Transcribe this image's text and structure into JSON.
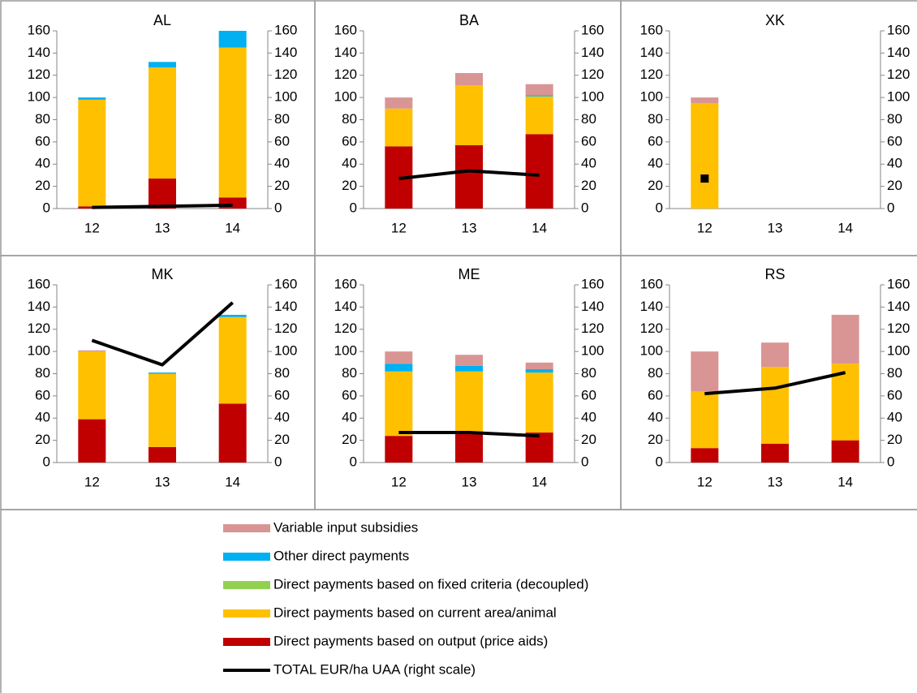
{
  "chart_data": [
    {
      "type": "bar",
      "title": "AL",
      "categories": [
        "12",
        "13",
        "14"
      ],
      "ylim": [
        0,
        160
      ],
      "yticks": [
        0,
        20,
        40,
        60,
        80,
        100,
        120,
        140,
        160
      ],
      "y2lim": [
        0,
        160
      ],
      "y2ticks": [
        0,
        20,
        40,
        60,
        80,
        100,
        120,
        140,
        160
      ],
      "series": [
        {
          "name": "Variable input subsidies",
          "color": "#d99594",
          "values": [
            0,
            0,
            0
          ]
        },
        {
          "name": "Other direct payments",
          "color": "#00b0f0",
          "values": [
            2,
            5,
            15
          ]
        },
        {
          "name": "Direct payments based on fixed criteria (decoupled)",
          "color": "#92d050",
          "values": [
            0,
            0,
            0
          ]
        },
        {
          "name": "Direct payments based on current area/animal",
          "color": "#ffc000",
          "values": [
            96,
            100,
            135
          ]
        },
        {
          "name": "Direct payments based on output (price aids)",
          "color": "#c00000",
          "values": [
            2,
            27,
            10
          ]
        },
        {
          "name": "TOTAL EUR/ha UAA (right scale)",
          "color": "#000000",
          "type": "line",
          "axis": "y2",
          "values": [
            1,
            2,
            3
          ]
        }
      ]
    },
    {
      "type": "bar",
      "title": "BA",
      "categories": [
        "12",
        "13",
        "14"
      ],
      "ylim": [
        0,
        160
      ],
      "yticks": [
        0,
        20,
        40,
        60,
        80,
        100,
        120,
        140,
        160
      ],
      "y2lim": [
        0,
        160
      ],
      "y2ticks": [
        0,
        20,
        40,
        60,
        80,
        100,
        120,
        140,
        160
      ],
      "series": [
        {
          "name": "Variable input subsidies",
          "color": "#d99594",
          "values": [
            10,
            11,
            10
          ]
        },
        {
          "name": "Other direct payments",
          "color": "#00b0f0",
          "values": [
            0,
            0,
            1
          ]
        },
        {
          "name": "Direct payments based on fixed criteria (decoupled)",
          "color": "#92d050",
          "values": [
            0,
            0,
            0
          ]
        },
        {
          "name": "Direct payments based on current area/animal",
          "color": "#ffc000",
          "values": [
            34,
            54,
            34
          ]
        },
        {
          "name": "Direct payments based on output (price aids)",
          "color": "#c00000",
          "values": [
            56,
            57,
            67
          ]
        },
        {
          "name": "TOTAL EUR/ha UAA (right scale)",
          "color": "#000000",
          "type": "line",
          "axis": "y2",
          "values": [
            27,
            34,
            30
          ]
        }
      ]
    },
    {
      "type": "bar",
      "title": "XK",
      "categories": [
        "12",
        "13",
        "14"
      ],
      "ylim": [
        0,
        160
      ],
      "yticks": [
        0,
        20,
        40,
        60,
        80,
        100,
        120,
        140,
        160
      ],
      "y2lim": [
        0,
        160
      ],
      "y2ticks": [
        0,
        20,
        40,
        60,
        80,
        100,
        120,
        140,
        160
      ],
      "series": [
        {
          "name": "Variable input subsidies",
          "color": "#d99594",
          "values": [
            5,
            null,
            null
          ]
        },
        {
          "name": "Other direct payments",
          "color": "#00b0f0",
          "values": [
            0,
            null,
            null
          ]
        },
        {
          "name": "Direct payments based on fixed criteria (decoupled)",
          "color": "#92d050",
          "values": [
            0,
            null,
            null
          ]
        },
        {
          "name": "Direct payments based on current area/animal",
          "color": "#ffc000",
          "values": [
            95,
            null,
            null
          ]
        },
        {
          "name": "Direct payments based on output (price aids)",
          "color": "#c00000",
          "values": [
            0,
            null,
            null
          ]
        },
        {
          "name": "TOTAL EUR/ha UAA (right scale)",
          "color": "#000000",
          "type": "line",
          "axis": "y2",
          "values": [
            27,
            null,
            null
          ]
        }
      ]
    },
    {
      "type": "bar",
      "title": "MK",
      "categories": [
        "12",
        "13",
        "14"
      ],
      "ylim": [
        0,
        160
      ],
      "yticks": [
        0,
        20,
        40,
        60,
        80,
        100,
        120,
        140,
        160
      ],
      "y2lim": [
        0,
        160
      ],
      "y2ticks": [
        0,
        20,
        40,
        60,
        80,
        100,
        120,
        140,
        160
      ],
      "series": [
        {
          "name": "Variable input subsidies",
          "color": "#d99594",
          "values": [
            1,
            0,
            0
          ]
        },
        {
          "name": "Other direct payments",
          "color": "#00b0f0",
          "values": [
            0,
            1,
            2
          ]
        },
        {
          "name": "Direct payments based on fixed criteria (decoupled)",
          "color": "#92d050",
          "values": [
            0,
            0,
            0
          ]
        },
        {
          "name": "Direct payments based on current area/animal",
          "color": "#ffc000",
          "values": [
            61,
            66,
            78
          ]
        },
        {
          "name": "Direct payments based on output (price aids)",
          "color": "#c00000",
          "values": [
            39,
            14,
            53
          ]
        },
        {
          "name": "TOTAL EUR/ha UAA (right scale)",
          "color": "#000000",
          "type": "line",
          "axis": "y2",
          "values": [
            110,
            88,
            144
          ]
        }
      ]
    },
    {
      "type": "bar",
      "title": "ME",
      "categories": [
        "12",
        "13",
        "14"
      ],
      "ylim": [
        0,
        160
      ],
      "yticks": [
        0,
        20,
        40,
        60,
        80,
        100,
        120,
        140,
        160
      ],
      "y2lim": [
        0,
        160
      ],
      "y2ticks": [
        0,
        20,
        40,
        60,
        80,
        100,
        120,
        140,
        160
      ],
      "series": [
        {
          "name": "Variable input subsidies",
          "color": "#d99594",
          "values": [
            11,
            10,
            6
          ]
        },
        {
          "name": "Other direct payments",
          "color": "#00b0f0",
          "values": [
            7,
            5,
            3
          ]
        },
        {
          "name": "Direct payments based on fixed criteria (decoupled)",
          "color": "#92d050",
          "values": [
            0,
            0,
            0
          ]
        },
        {
          "name": "Direct payments based on current area/animal",
          "color": "#ffc000",
          "values": [
            58,
            55,
            54
          ]
        },
        {
          "name": "Direct payments based on output (price aids)",
          "color": "#c00000",
          "values": [
            24,
            27,
            27
          ]
        },
        {
          "name": "TOTAL EUR/ha UAA (right scale)",
          "color": "#000000",
          "type": "line",
          "axis": "y2",
          "values": [
            27,
            27,
            24
          ]
        }
      ]
    },
    {
      "type": "bar",
      "title": "RS",
      "categories": [
        "12",
        "13",
        "14"
      ],
      "ylim": [
        0,
        160
      ],
      "yticks": [
        0,
        20,
        40,
        60,
        80,
        100,
        120,
        140,
        160
      ],
      "y2lim": [
        0,
        160
      ],
      "y2ticks": [
        0,
        20,
        40,
        60,
        80,
        100,
        120,
        140,
        160
      ],
      "series": [
        {
          "name": "Variable input subsidies",
          "color": "#d99594",
          "values": [
            36,
            22,
            44
          ]
        },
        {
          "name": "Other direct payments",
          "color": "#00b0f0",
          "values": [
            0,
            0,
            0
          ]
        },
        {
          "name": "Direct payments based on fixed criteria (decoupled)",
          "color": "#92d050",
          "values": [
            0,
            0,
            0
          ]
        },
        {
          "name": "Direct payments based on current area/animal",
          "color": "#ffc000",
          "values": [
            51,
            69,
            69
          ]
        },
        {
          "name": "Direct payments based on output (price aids)",
          "color": "#c00000",
          "values": [
            13,
            17,
            20
          ]
        },
        {
          "name": "TOTAL EUR/ha UAA (right scale)",
          "color": "#000000",
          "type": "line",
          "axis": "y2",
          "values": [
            62,
            67,
            81
          ]
        }
      ]
    }
  ]
}
